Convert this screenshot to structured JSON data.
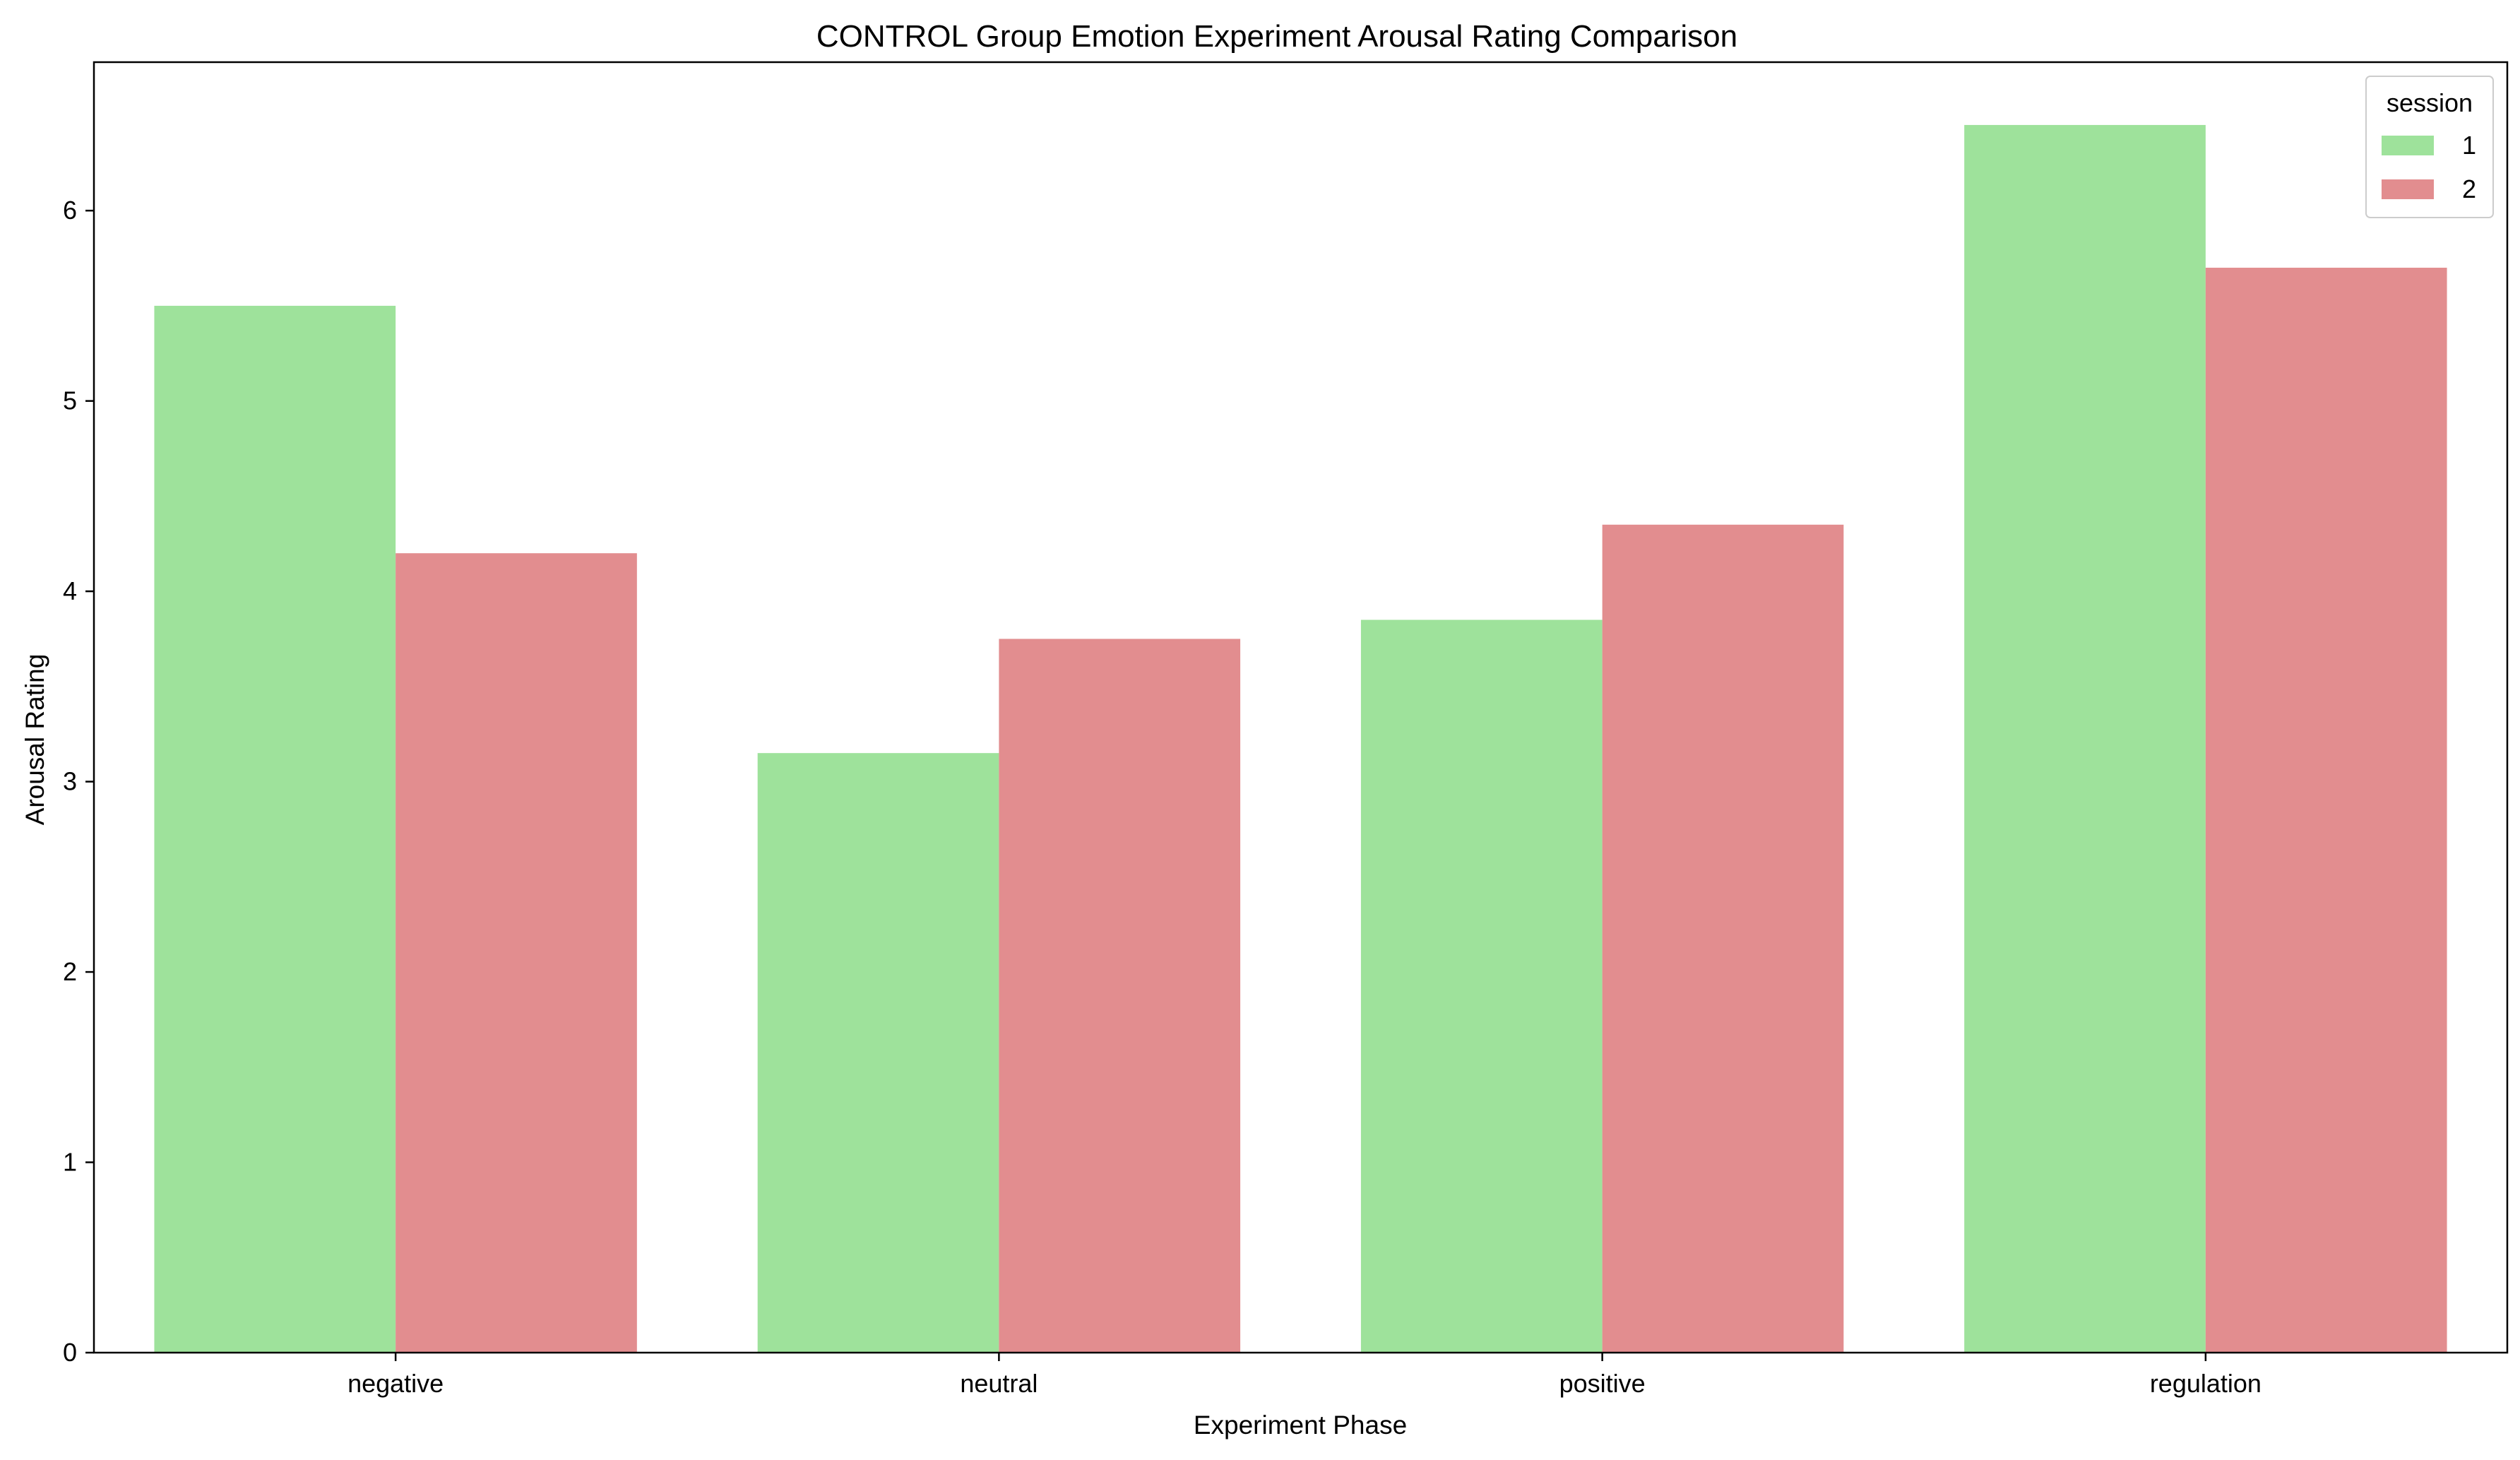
{
  "chart_data": {
    "type": "bar",
    "title": "CONTROL Group Emotion Experiment Arousal Rating Comparison",
    "xlabel": "Experiment Phase",
    "ylabel": "Arousal Rating",
    "categories": [
      "negative",
      "neutral",
      "positive",
      "regulation"
    ],
    "series": [
      {
        "name": "1",
        "values": [
          5.5,
          3.15,
          3.85,
          6.45
        ],
        "color": "#9ee29b"
      },
      {
        "name": "2",
        "values": [
          4.2,
          3.75,
          4.35,
          5.7
        ],
        "color": "#e28d8f"
      }
    ],
    "ylim": [
      0,
      6.78
    ],
    "yticks": [
      0,
      1,
      2,
      3,
      4,
      5,
      6
    ],
    "grid": false,
    "legend": {
      "title": "session",
      "position": "top-right"
    }
  }
}
